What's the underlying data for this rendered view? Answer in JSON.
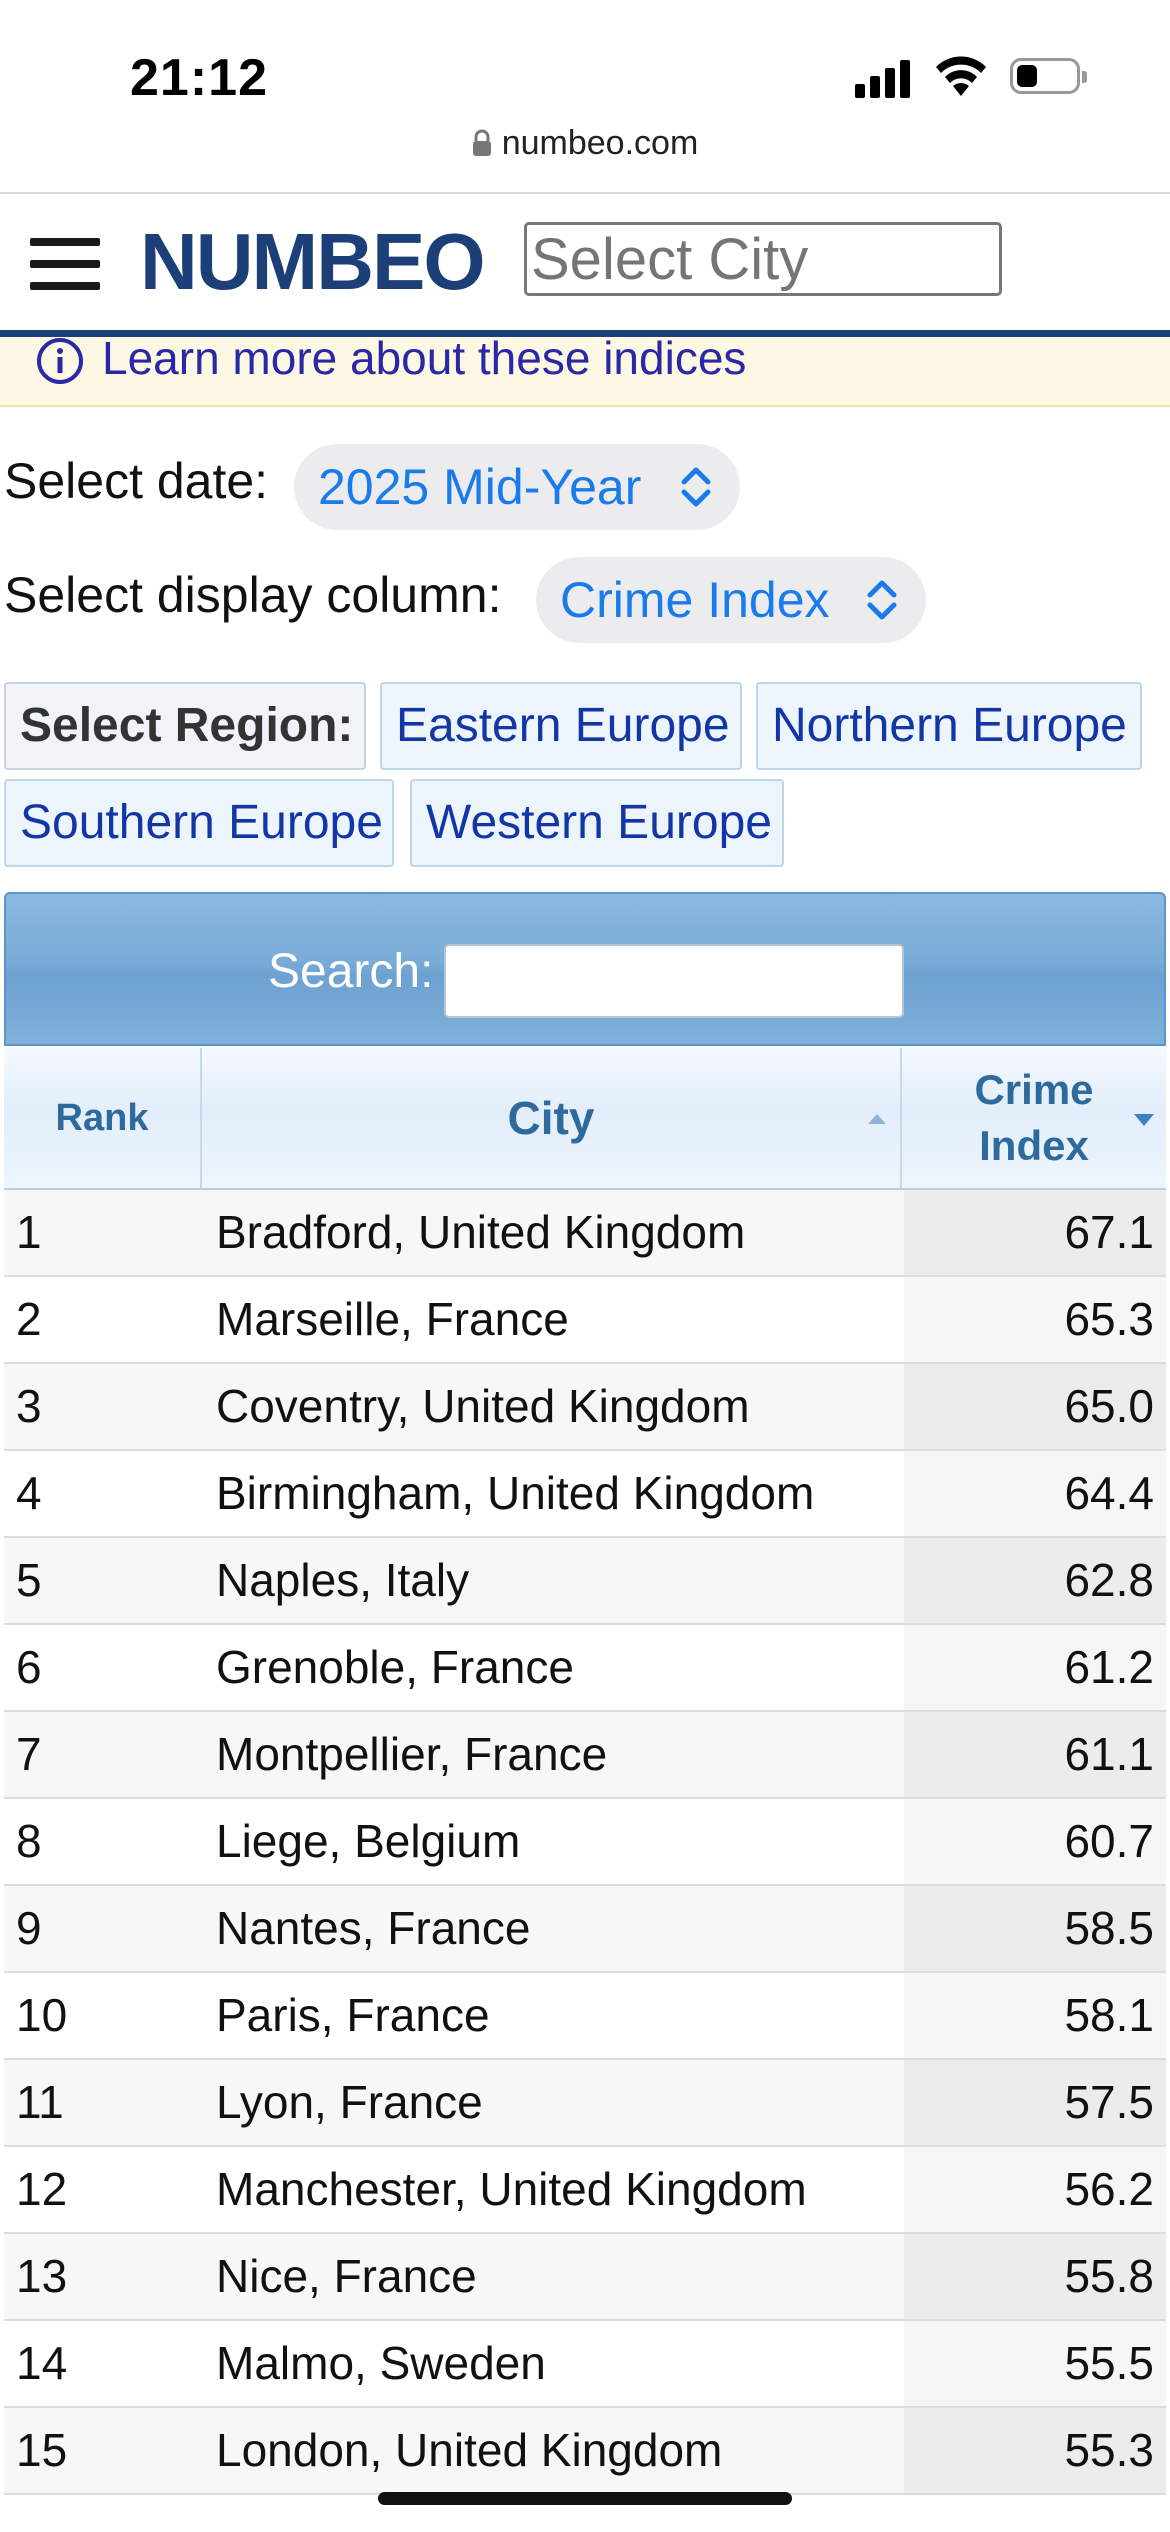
{
  "status_bar": {
    "time": "21:12"
  },
  "browser": {
    "url": "numbeo.com"
  },
  "header": {
    "logo": "NUMBEO",
    "city_placeholder": "Select City"
  },
  "info": {
    "learn_more": "Learn more about these indices"
  },
  "controls": {
    "date_label": "Select date:",
    "date_value": "2025 Mid-Year",
    "column_label": "Select display column:",
    "column_value": "Crime Index"
  },
  "regions": {
    "label": "Select Region:",
    "items": [
      "Eastern Europe",
      "Northern Europe",
      "Southern Europe",
      "Western Europe"
    ]
  },
  "table": {
    "search_label": "Search:",
    "headers": {
      "rank": "Rank",
      "city": "City",
      "crime_line1": "Crime",
      "crime_line2": "Index"
    },
    "rows": [
      {
        "rank": "1",
        "city": "Bradford, United Kingdom",
        "value": "67.1"
      },
      {
        "rank": "2",
        "city": "Marseille, France",
        "value": "65.3"
      },
      {
        "rank": "3",
        "city": "Coventry, United Kingdom",
        "value": "65.0"
      },
      {
        "rank": "4",
        "city": "Birmingham, United Kingdom",
        "value": "64.4"
      },
      {
        "rank": "5",
        "city": "Naples, Italy",
        "value": "62.8"
      },
      {
        "rank": "6",
        "city": "Grenoble, France",
        "value": "61.2"
      },
      {
        "rank": "7",
        "city": "Montpellier, France",
        "value": "61.1"
      },
      {
        "rank": "8",
        "city": "Liege, Belgium",
        "value": "60.7"
      },
      {
        "rank": "9",
        "city": "Nantes, France",
        "value": "58.5"
      },
      {
        "rank": "10",
        "city": "Paris, France",
        "value": "58.1"
      },
      {
        "rank": "11",
        "city": "Lyon, France",
        "value": "57.5"
      },
      {
        "rank": "12",
        "city": "Manchester, United Kingdom",
        "value": "56.2"
      },
      {
        "rank": "13",
        "city": "Nice, France",
        "value": "55.8"
      },
      {
        "rank": "14",
        "city": "Malmo, Sweden",
        "value": "55.5"
      },
      {
        "rank": "15",
        "city": "London, United Kingdom",
        "value": "55.3"
      }
    ]
  },
  "colors": {
    "brand": "#1c3f77",
    "link": "#1435a6",
    "ios_blue": "#1a7bea"
  }
}
